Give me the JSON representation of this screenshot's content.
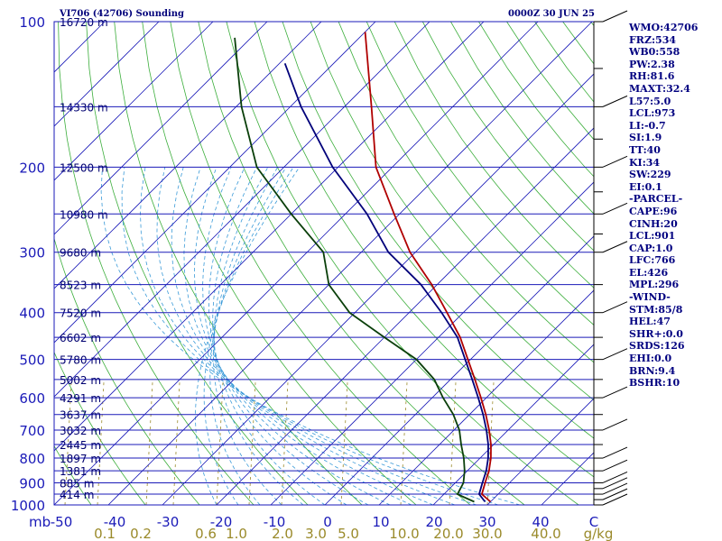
{
  "chart_data": {
    "type": "line",
    "title_left": "VI706 (42706) Sounding",
    "title_right": "0000Z 30 JUN 25",
    "pressure_axis": {
      "label": "mb",
      "ticks": [
        "100",
        "200",
        "300",
        "400",
        "500",
        "600",
        "700",
        "800",
        "900",
        "1000"
      ]
    },
    "temperature_axis": {
      "ticks": [
        "-50",
        "-40",
        "-30",
        "-20",
        "-10",
        "0",
        "10",
        "20",
        "30",
        "40",
        "C"
      ],
      "range": [
        -50,
        50
      ]
    },
    "mixing_ratio_axis": {
      "unit": "g/kg",
      "ticks": [
        "0.1",
        "0.2",
        "0.6",
        "1.0",
        "2.0",
        "3.0",
        "5.0",
        "10.0",
        "20.0",
        "30.0",
        "40.0"
      ]
    },
    "height_labels": [
      {
        "p": 100,
        "text": "16720 m"
      },
      {
        "p": 150,
        "text": "14330 m"
      },
      {
        "p": 200,
        "text": "12500 m"
      },
      {
        "p": 250,
        "text": "10980 m"
      },
      {
        "p": 300,
        "text": "9680 m"
      },
      {
        "p": 350,
        "text": "8523 m"
      },
      {
        "p": 400,
        "text": "7520 m"
      },
      {
        "p": 450,
        "text": "6602 m"
      },
      {
        "p": 500,
        "text": "5780 m"
      },
      {
        "p": 550,
        "text": "5002 m"
      },
      {
        "p": 600,
        "text": "4291 m"
      },
      {
        "p": 650,
        "text": "3637 m"
      },
      {
        "p": 700,
        "text": "3032 m"
      },
      {
        "p": 750,
        "text": "2445 m"
      },
      {
        "p": 800,
        "text": "1897 m"
      },
      {
        "p": 850,
        "text": "1381 m"
      },
      {
        "p": 900,
        "text": "885 m"
      },
      {
        "p": 950,
        "text": "414 m"
      }
    ],
    "series": [
      {
        "color": "#b00000",
        "points": [
          {
            "p": 105,
            "t": -80
          },
          {
            "p": 150,
            "t": -65
          },
          {
            "p": 200,
            "t": -53
          },
          {
            "p": 250,
            "t": -41
          },
          {
            "p": 300,
            "t": -31
          },
          {
            "p": 350,
            "t": -21
          },
          {
            "p": 400,
            "t": -13
          },
          {
            "p": 450,
            "t": -6
          },
          {
            "p": 500,
            "t": -0.5
          },
          {
            "p": 550,
            "t": 4.5
          },
          {
            "p": 600,
            "t": 9
          },
          {
            "p": 650,
            "t": 13
          },
          {
            "p": 700,
            "t": 16.5
          },
          {
            "p": 750,
            "t": 19.5
          },
          {
            "p": 800,
            "t": 22
          },
          {
            "p": 850,
            "t": 24
          },
          {
            "p": 900,
            "t": 25.5
          },
          {
            "p": 950,
            "t": 27
          },
          {
            "p": 985,
            "t": 30
          }
        ]
      },
      {
        "color": "#00007a",
        "points": [
          {
            "p": 122,
            "t": -89
          },
          {
            "p": 150,
            "t": -78
          },
          {
            "p": 200,
            "t": -61
          },
          {
            "p": 250,
            "t": -46
          },
          {
            "p": 300,
            "t": -35
          },
          {
            "p": 350,
            "t": -23
          },
          {
            "p": 400,
            "t": -14
          },
          {
            "p": 450,
            "t": -6.5
          },
          {
            "p": 500,
            "t": -1
          },
          {
            "p": 550,
            "t": 4
          },
          {
            "p": 600,
            "t": 8.5
          },
          {
            "p": 650,
            "t": 12.5
          },
          {
            "p": 700,
            "t": 16
          },
          {
            "p": 750,
            "t": 19
          },
          {
            "p": 800,
            "t": 21.5
          },
          {
            "p": 850,
            "t": 23.5
          },
          {
            "p": 900,
            "t": 25
          },
          {
            "p": 950,
            "t": 26.5
          },
          {
            "p": 985,
            "t": 29
          }
        ]
      },
      {
        "color": "#0a3f0a",
        "points": [
          {
            "p": 108,
            "t": -103
          },
          {
            "p": 150,
            "t": -89
          },
          {
            "p": 200,
            "t": -75
          },
          {
            "p": 250,
            "t": -60
          },
          {
            "p": 300,
            "t": -47
          },
          {
            "p": 350,
            "t": -40
          },
          {
            "p": 400,
            "t": -31
          },
          {
            "p": 450,
            "t": -20
          },
          {
            "p": 500,
            "t": -10
          },
          {
            "p": 550,
            "t": -3
          },
          {
            "p": 600,
            "t": 2
          },
          {
            "p": 650,
            "t": 7
          },
          {
            "p": 700,
            "t": 11
          },
          {
            "p": 750,
            "t": 14
          },
          {
            "p": 800,
            "t": 17
          },
          {
            "p": 850,
            "t": 19.5
          },
          {
            "p": 900,
            "t": 21.5
          },
          {
            "p": 950,
            "t": 22.5
          },
          {
            "p": 985,
            "t": 27
          }
        ]
      }
    ]
  },
  "indices": [
    "WMO:42706",
    "FRZ:534",
    "WB0:558",
    "PW:2.38",
    "RH:81.6",
    "MAXT:32.4",
    "L57:5.0",
    "LCL:973",
    "LI:-0.7",
    "SI:1.9",
    "TT:40",
    "KI:34",
    "SW:229",
    "EI:0.1",
    "-PARCEL-",
    "CAPE:96",
    "CINH:20",
    "LCL:901",
    "CAP:1.0",
    "LFC:766",
    "EL:426",
    "MPL:296",
    "-WIND-",
    "STM:85/8",
    "HEL:47",
    "SHR+:0.0",
    "SRDS:126",
    "EHI:0.0",
    "BRN:9.4",
    "BSHR:10"
  ]
}
